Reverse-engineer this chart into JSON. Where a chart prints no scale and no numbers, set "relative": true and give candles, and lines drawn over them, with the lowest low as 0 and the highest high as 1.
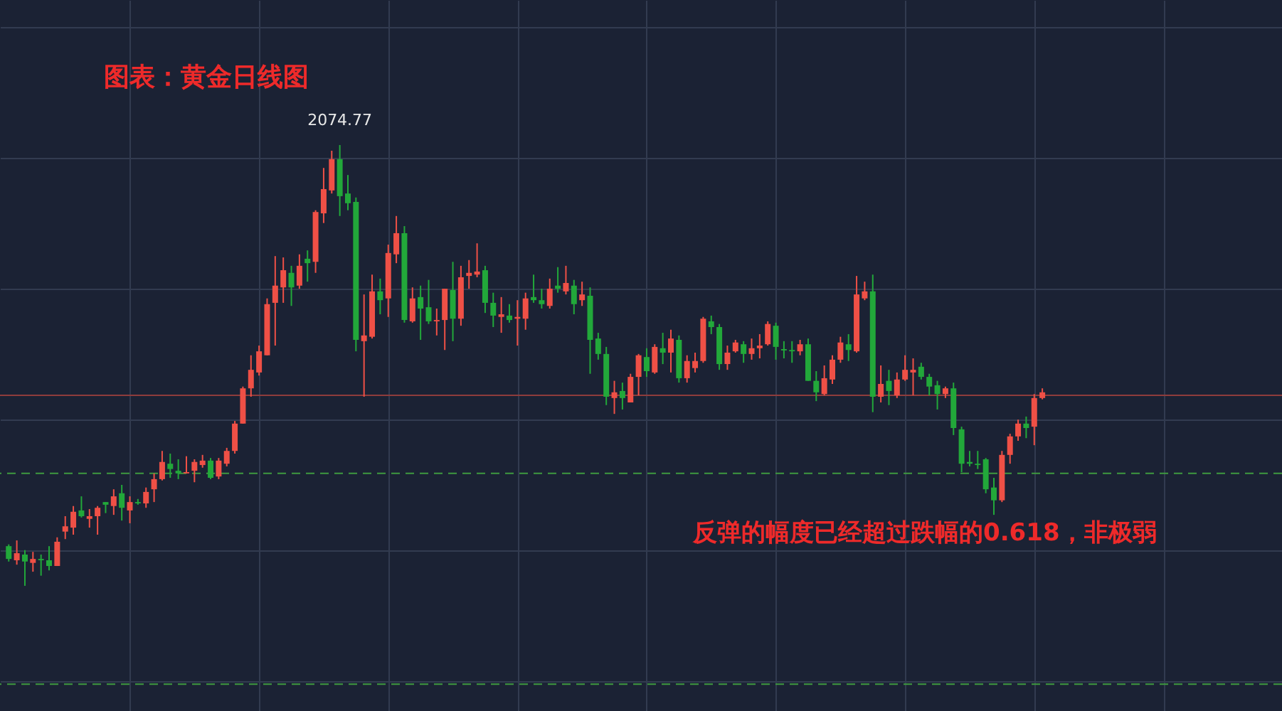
{
  "chart_data": {
    "type": "candlestick",
    "title": "图表：黄金日线图",
    "relative": true,
    "grid": true,
    "annotations": [
      {
        "text": "2074.77",
        "y": 1
      },
      "反弹的幅度已经超过跌幅的0.618，非极弱"
    ],
    "categories": [
      null,
      null,
      null,
      null,
      null,
      null,
      null,
      null,
      null,
      null,
      null,
      null,
      null,
      null,
      null,
      null,
      null,
      null,
      null,
      null,
      null,
      null,
      null,
      null,
      null,
      null,
      null,
      null,
      null,
      null,
      null,
      null,
      null,
      null,
      null,
      null,
      null,
      null,
      null,
      null,
      null,
      null,
      null,
      null,
      null,
      null,
      null,
      null,
      null,
      null,
      null,
      null,
      null,
      null,
      null,
      null,
      null,
      null,
      null,
      null,
      null,
      null,
      null,
      null,
      null,
      null,
      null,
      null,
      null,
      null,
      null,
      null,
      null,
      null,
      null,
      null,
      null,
      null,
      null,
      null,
      null,
      null,
      null,
      null,
      null,
      null,
      null,
      null,
      null,
      null,
      null,
      null,
      null,
      null,
      null,
      null,
      null,
      null,
      null,
      null,
      null,
      null,
      null,
      null,
      null,
      null,
      null,
      null,
      null,
      null,
      null,
      null,
      null,
      null,
      null,
      null,
      null,
      null,
      null,
      null,
      null,
      null,
      null,
      null,
      null,
      null,
      null,
      null,
      null
    ],
    "ohlc": [
      [
        0.09,
        0.094,
        0.055,
        0.061
      ],
      [
        0.058,
        0.103,
        0.048,
        0.074
      ],
      [
        0.071,
        0.081,
        0,
        0.055
      ],
      [
        0.052,
        0.077,
        0.032,
        0.061
      ],
      [
        0.061,
        0.071,
        0.023,
        0.058
      ],
      [
        0.058,
        0.09,
        0.035,
        0.045
      ],
      [
        0.045,
        0.11,
        0.045,
        0.1
      ],
      [
        0.123,
        0.158,
        0.106,
        0.135
      ],
      [
        0.132,
        0.181,
        0.116,
        0.168
      ],
      [
        0.171,
        0.203,
        0.155,
        0.158
      ],
      [
        0.152,
        0.174,
        0.132,
        0.158
      ],
      [
        0.158,
        0.181,
        0.116,
        0.177
      ],
      [
        0.19,
        0.19,
        0.165,
        0.184
      ],
      [
        0.181,
        0.219,
        0.161,
        0.203
      ],
      [
        0.21,
        0.229,
        0.148,
        0.177
      ],
      [
        0.171,
        0.203,
        0.142,
        0.19
      ],
      [
        0.19,
        0.197,
        0.184,
        0.187
      ],
      [
        0.187,
        0.223,
        0.177,
        0.213
      ],
      [
        0.219,
        0.255,
        0.19,
        0.242
      ],
      [
        0.242,
        0.306,
        0.239,
        0.281
      ],
      [
        0.277,
        0.3,
        0.245,
        0.265
      ],
      [
        0.261,
        0.287,
        0.242,
        0.255
      ],
      [
        0.255,
        0.294,
        0.255,
        0.258
      ],
      [
        0.261,
        0.287,
        0.235,
        0.281
      ],
      [
        0.274,
        0.297,
        0.268,
        0.284
      ],
      [
        0.284,
        0.29,
        0.242,
        0.245
      ],
      [
        0.248,
        0.29,
        0.242,
        0.284
      ],
      [
        0.277,
        0.313,
        0.271,
        0.306
      ],
      [
        0.306,
        0.374,
        0.3,
        0.368
      ],
      [
        0.368,
        0.452,
        0.368,
        0.448
      ],
      [
        0.448,
        0.523,
        0.429,
        0.49
      ],
      [
        0.484,
        0.545,
        0.477,
        0.532
      ],
      [
        0.523,
        0.652,
        0.523,
        0.639
      ],
      [
        0.642,
        0.748,
        0.545,
        0.681
      ],
      [
        0.677,
        0.745,
        0.642,
        0.716
      ],
      [
        0.71,
        0.726,
        0.635,
        0.677
      ],
      [
        0.681,
        0.752,
        0.674,
        0.726
      ],
      [
        0.742,
        0.761,
        0.69,
        0.732
      ],
      [
        0.735,
        0.852,
        0.71,
        0.848
      ],
      [
        0.845,
        0.948,
        0.823,
        0.9
      ],
      [
        0.897,
        0.987,
        0.89,
        0.968
      ],
      [
        0.968,
        1,
        0.839,
        0.884
      ],
      [
        0.89,
        0.932,
        0.852,
        0.868
      ],
      [
        0.871,
        0.881,
        0.532,
        0.558
      ],
      [
        0.555,
        0.661,
        0.429,
        0.568
      ],
      [
        0.565,
        0.706,
        0.561,
        0.668
      ],
      [
        0.668,
        0.697,
        0.616,
        0.648
      ],
      [
        0.652,
        0.774,
        0.61,
        0.755
      ],
      [
        0.752,
        0.839,
        0.732,
        0.8
      ],
      [
        0.8,
        0.816,
        0.597,
        0.603
      ],
      [
        0.6,
        0.677,
        0.597,
        0.652
      ],
      [
        0.655,
        0.681,
        0.558,
        0.629
      ],
      [
        0.632,
        0.694,
        0.594,
        0.6
      ],
      [
        0.6,
        0.629,
        0.568,
        0.603
      ],
      [
        0.603,
        0.674,
        0.535,
        0.674
      ],
      [
        0.671,
        0.735,
        0.555,
        0.606
      ],
      [
        0.606,
        0.726,
        0.59,
        0.7
      ],
      [
        0.703,
        0.739,
        0.674,
        0.71
      ],
      [
        0.706,
        0.777,
        0.7,
        0.713
      ],
      [
        0.716,
        0.726,
        0.619,
        0.642
      ],
      [
        0.642,
        0.665,
        0.587,
        0.613
      ],
      [
        0.61,
        0.655,
        0.574,
        0.616
      ],
      [
        0.613,
        0.639,
        0.597,
        0.603
      ],
      [
        0.606,
        0.648,
        0.545,
        0.61
      ],
      [
        0.606,
        0.665,
        0.581,
        0.652
      ],
      [
        0.655,
        0.706,
        0.642,
        0.648
      ],
      [
        0.648,
        0.674,
        0.629,
        0.639
      ],
      [
        0.635,
        0.697,
        0.629,
        0.674
      ],
      [
        0.681,
        0.723,
        0.665,
        0.674
      ],
      [
        0.668,
        0.726,
        0.661,
        0.687
      ],
      [
        0.681,
        0.694,
        0.616,
        0.639
      ],
      [
        0.648,
        0.69,
        0.635,
        0.661
      ],
      [
        0.658,
        0.677,
        0.481,
        0.558
      ],
      [
        0.561,
        0.574,
        0.513,
        0.526
      ],
      [
        0.526,
        0.542,
        0.41,
        0.429
      ],
      [
        0.426,
        0.465,
        0.39,
        0.439
      ],
      [
        0.442,
        0.461,
        0.4,
        0.426
      ],
      [
        0.416,
        0.481,
        0.416,
        0.474
      ],
      [
        0.474,
        0.526,
        0.432,
        0.523
      ],
      [
        0.519,
        0.539,
        0.474,
        0.487
      ],
      [
        0.484,
        0.548,
        0.481,
        0.542
      ],
      [
        0.539,
        0.574,
        0.503,
        0.529
      ],
      [
        0.529,
        0.581,
        0.484,
        0.561
      ],
      [
        0.558,
        0.568,
        0.461,
        0.471
      ],
      [
        0.471,
        0.523,
        0.461,
        0.51
      ],
      [
        0.494,
        0.529,
        0.484,
        0.51
      ],
      [
        0.51,
        0.61,
        0.506,
        0.606
      ],
      [
        0.6,
        0.613,
        0.571,
        0.587
      ],
      [
        0.587,
        0.594,
        0.49,
        0.503
      ],
      [
        0.503,
        0.545,
        0.49,
        0.529
      ],
      [
        0.532,
        0.558,
        0.529,
        0.552
      ],
      [
        0.548,
        0.555,
        0.506,
        0.526
      ],
      [
        0.526,
        0.561,
        0.513,
        0.539
      ],
      [
        0.539,
        0.571,
        0.516,
        0.545
      ],
      [
        0.548,
        0.6,
        0.545,
        0.594
      ],
      [
        0.59,
        0.597,
        0.513,
        0.542
      ],
      [
        0.537,
        0.555,
        0.516,
        0.534
      ],
      [
        0.535,
        0.555,
        0.506,
        0.532
      ],
      [
        0.532,
        0.558,
        0.523,
        0.548
      ],
      [
        0.548,
        0.561,
        0.465,
        0.465
      ],
      [
        0.465,
        0.487,
        0.419,
        0.439
      ],
      [
        0.435,
        0.5,
        0.432,
        0.471
      ],
      [
        0.468,
        0.523,
        0.458,
        0.513
      ],
      [
        0.513,
        0.565,
        0.506,
        0.552
      ],
      [
        0.548,
        0.571,
        0.51,
        0.535
      ],
      [
        0.532,
        0.703,
        0.529,
        0.661
      ],
      [
        0.652,
        0.69,
        0.648,
        0.668
      ],
      [
        0.668,
        0.706,
        0.394,
        0.429
      ],
      [
        0.429,
        0.5,
        0.416,
        0.458
      ],
      [
        0.465,
        0.49,
        0.41,
        0.442
      ],
      [
        0.432,
        0.484,
        0.426,
        0.468
      ],
      [
        0.468,
        0.523,
        0.465,
        0.49
      ],
      [
        0.484,
        0.516,
        0.432,
        0.49
      ],
      [
        0.497,
        0.506,
        0.468,
        0.474
      ],
      [
        0.474,
        0.481,
        0.432,
        0.452
      ],
      [
        0.455,
        0.465,
        0.4,
        0.435
      ],
      [
        0.435,
        0.452,
        0.426,
        0.448
      ],
      [
        0.448,
        0.461,
        0.342,
        0.358
      ],
      [
        0.355,
        0.361,
        0.258,
        0.277
      ],
      [
        0.281,
        0.306,
        0.271,
        0.277
      ],
      [
        0.277,
        0.306,
        0.265,
        0.274
      ],
      [
        0.287,
        0.29,
        0.21,
        0.219
      ],
      [
        0.223,
        0.245,
        0.161,
        0.194
      ],
      [
        0.194,
        0.306,
        0.19,
        0.297
      ],
      [
        0.297,
        0.345,
        0.277,
        0.339
      ],
      [
        0.339,
        0.377,
        0.329,
        0.368
      ],
      [
        0.368,
        0.384,
        0.335,
        0.358
      ],
      [
        0.361,
        0.435,
        0.319,
        0.426
      ],
      [
        0.426,
        0.448,
        0.423,
        0.439
      ]
    ],
    "colors": [
      "#22a83a",
      "#ef5046",
      "#22a83a",
      "#ef5046",
      "#22a83a",
      "#22a83a",
      "#ef5046",
      "#ef5046",
      "#ef5046",
      "#22a83a",
      "#ef5046",
      "#ef5046",
      "#22a83a",
      "#ef5046",
      "#22a83a",
      "#ef5046",
      "#22a83a",
      "#ef5046",
      "#ef5046",
      "#ef5046",
      "#22a83a",
      "#22a83a",
      "#ef5046",
      "#ef5046",
      "#ef5046",
      "#22a83a",
      "#ef5046",
      "#ef5046",
      "#ef5046",
      "#ef5046",
      "#ef5046",
      "#ef5046",
      "#ef5046",
      "#ef5046",
      "#ef5046",
      "#22a83a",
      "#ef5046",
      "#22a83a",
      "#ef5046",
      "#ef5046",
      "#ef5046",
      "#22a83a",
      "#22a83a",
      "#22a83a",
      "#ef5046",
      "#ef5046",
      "#22a83a",
      "#ef5046",
      "#ef5046",
      "#22a83a",
      "#ef5046",
      "#22a83a",
      "#22a83a",
      "#ef5046",
      "#ef5046",
      "#22a83a",
      "#ef5046",
      "#ef5046",
      "#ef5046",
      "#22a83a",
      "#22a83a",
      "#ef5046",
      "#22a83a",
      "#ef5046",
      "#ef5046",
      "#22a83a",
      "#22a83a",
      "#ef5046",
      "#22a83a",
      "#ef5046",
      "#22a83a",
      "#ef5046",
      "#22a83a",
      "#22a83a",
      "#22a83a",
      "#ef5046",
      "#22a83a",
      "#ef5046",
      "#ef5046",
      "#22a83a",
      "#ef5046",
      "#22a83a",
      "#ef5046",
      "#22a83a",
      "#ef5046",
      "#ef5046",
      "#ef5046",
      "#22a83a",
      "#22a83a",
      "#ef5046",
      "#ef5046",
      "#22a83a",
      "#ef5046",
      "#ef5046",
      "#ef5046",
      "#22a83a",
      "#22a83a",
      "#22a83a",
      "#ef5046",
      "#22a83a",
      "#22a83a",
      "#ef5046",
      "#ef5046",
      "#ef5046",
      "#22a83a",
      "#ef5046",
      "#ef5046",
      "#22a83a",
      "#ef5046",
      "#22a83a",
      "#ef5046",
      "#ef5046",
      "#ef5046",
      "#22a83a",
      "#22a83a",
      "#22a83a",
      "#ef5046",
      "#22a83a",
      "#22a83a",
      "#22a83a",
      "#22a83a",
      "#22a83a",
      "#22a83a",
      "#ef5046",
      "#ef5046",
      "#ef5046",
      "#22a83a",
      "#ef5046",
      "#ef5046"
    ],
    "ref_lines": [
      {
        "axis": "y",
        "value": 0.432,
        "color": "#8e3c3c",
        "line_style": "solid"
      },
      {
        "axis": "y",
        "value": 0.255,
        "color": "#3f9a3f",
        "line_style": "dashed"
      },
      {
        "axis": "y",
        "value": -0.223,
        "color": "#3f9a3f",
        "line_style": "dashed"
      }
    ]
  }
}
